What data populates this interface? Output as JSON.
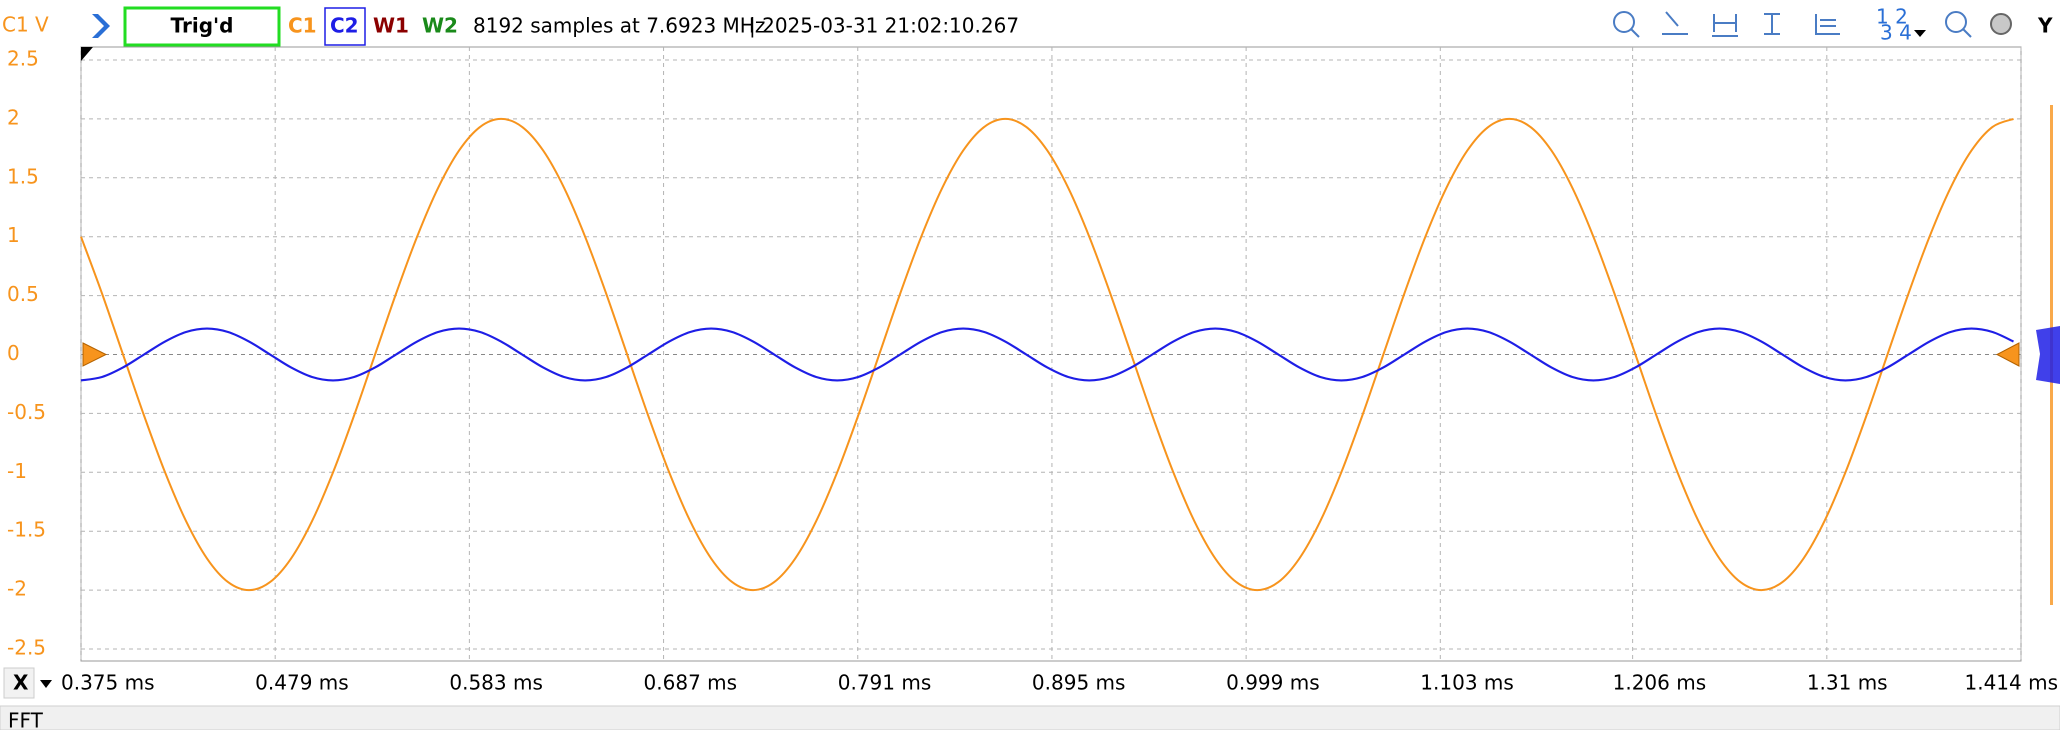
{
  "toolbar": {
    "trigger_status": "Trig'd",
    "channels": [
      "W1",
      "W2"
    ],
    "acquisition": "8192 samples at 7.6923 MHz",
    "timestamp": "| 2025-03-31 21:02:10.267",
    "icon_digits": [
      "1 2",
      "3 4"
    ],
    "y_button": "Y"
  },
  "chart_data": {
    "type": "line",
    "y_label": "C1 V",
    "x": [
      0.375,
      0.38625,
      0.3975,
      0.40875,
      0.42,
      0.43125,
      0.4425,
      0.45375,
      0.465,
      0.47625,
      0.4875,
      0.49875,
      0.51,
      0.52125,
      0.5325,
      0.54375,
      0.555,
      0.56625,
      0.5775,
      0.58875,
      0.6,
      0.61125,
      0.6225,
      0.63375,
      0.645,
      0.65625,
      0.6675,
      0.67875,
      0.69,
      0.70125,
      0.7125,
      0.72375,
      0.735,
      0.74625,
      0.7575,
      0.76875,
      0.78,
      0.79125,
      0.8025,
      0.81375,
      0.825,
      0.83625,
      0.8475,
      0.85875,
      0.87,
      0.88125,
      0.8925,
      0.90375,
      0.915,
      0.92625,
      0.9375,
      0.94875,
      0.96,
      0.97125,
      0.9825,
      0.99375,
      1.005,
      1.01625,
      1.0275,
      1.03875,
      1.05,
      1.06125,
      1.0725,
      1.08375,
      1.095,
      1.10625,
      1.1175,
      1.12875,
      1.14,
      1.15125,
      1.1625,
      1.17375,
      1.185,
      1.19625,
      1.2075,
      1.21875,
      1.23,
      1.24125,
      1.2525,
      1.26375,
      1.275,
      1.28625,
      1.2975,
      1.30875,
      1.32,
      1.33125,
      1.3425,
      1.35375,
      1.365,
      1.37625,
      1.3875,
      1.39875,
      1.41
    ],
    "series": [
      {
        "name": "C1",
        "color": "#f7941d",
        "values": [
          1,
          0.518,
          0,
          -0.518,
          -1,
          -1.414,
          -1.732,
          -1.932,
          -2,
          -1.932,
          -1.732,
          -1.414,
          -1,
          -0.518,
          0,
          0.518,
          1,
          1.414,
          1.732,
          1.932,
          2,
          1.932,
          1.732,
          1.414,
          1,
          0.518,
          0,
          -0.518,
          -1,
          -1.414,
          -1.732,
          -1.932,
          -2,
          -1.932,
          -1.732,
          -1.414,
          -1,
          -0.518,
          0,
          0.518,
          1,
          1.414,
          1.732,
          1.932,
          2,
          1.932,
          1.732,
          1.414,
          1,
          0.518,
          0,
          -0.518,
          -1,
          -1.414,
          -1.732,
          -1.932,
          -2,
          -1.932,
          -1.732,
          -1.414,
          -1,
          -0.518,
          0,
          0.518,
          1,
          1.414,
          1.732,
          1.932,
          2,
          1.932,
          1.732,
          1.414,
          1,
          0.518,
          0,
          -0.518,
          -1,
          -1.414,
          -1.732,
          -1.932,
          -2,
          -1.932,
          -1.732,
          -1.414,
          -1,
          -0.518,
          0,
          0.518,
          1,
          1.414,
          1.732,
          1.932,
          2
        ]
      },
      {
        "name": "C2",
        "color": "#1e1ee6",
        "values": [
          -0.22,
          -0.191,
          -0.11,
          0,
          0.11,
          0.191,
          0.22,
          0.191,
          0.11,
          0,
          -0.11,
          -0.191,
          -0.22,
          -0.191,
          -0.11,
          0,
          0.11,
          0.191,
          0.22,
          0.191,
          0.11,
          0,
          -0.11,
          -0.191,
          -0.22,
          -0.191,
          -0.11,
          0,
          0.11,
          0.191,
          0.22,
          0.191,
          0.11,
          0,
          -0.11,
          -0.191,
          -0.22,
          -0.191,
          -0.11,
          0,
          0.11,
          0.191,
          0.22,
          0.191,
          0.11,
          0,
          -0.11,
          -0.191,
          -0.22,
          -0.191,
          -0.11,
          0,
          0.11,
          0.191,
          0.22,
          0.191,
          0.11,
          0,
          -0.11,
          -0.191,
          -0.22,
          -0.191,
          -0.11,
          0,
          0.11,
          0.191,
          0.22,
          0.191,
          0.11,
          0,
          -0.11,
          -0.191,
          -0.22,
          -0.191,
          -0.11,
          0,
          0.11,
          0.191,
          0.22,
          0.191,
          0.11,
          0,
          -0.11,
          -0.191,
          -0.22,
          -0.191,
          -0.11,
          0,
          0.11,
          0.191,
          0.22,
          0.191,
          0.11
        ]
      }
    ],
    "xlim": [
      0.375,
      1.414
    ],
    "xticks": [
      {
        "value": 0.375,
        "label": "0.375 ms"
      },
      {
        "value": 0.479,
        "label": "0.479 ms"
      },
      {
        "value": 0.583,
        "label": "0.583 ms"
      },
      {
        "value": 0.687,
        "label": "0.687 ms"
      },
      {
        "value": 0.791,
        "label": "0.791 ms"
      },
      {
        "value": 0.895,
        "label": "0.895 ms"
      },
      {
        "value": 0.999,
        "label": "0.999 ms"
      },
      {
        "value": 1.103,
        "label": "1.103 ms"
      },
      {
        "value": 1.206,
        "label": "1.206 ms"
      },
      {
        "value": 1.31,
        "label": "1.31 ms"
      },
      {
        "value": 1.414,
        "label": "1.414 ms"
      }
    ],
    "ylim": [
      -2.5,
      2.5
    ],
    "yticks": [
      2.5,
      2,
      1.5,
      1,
      0.5,
      0,
      -0.5,
      -1,
      -1.5,
      -2,
      -2.5
    ],
    "grid": true
  },
  "bottom_bar": {
    "x_button": "X",
    "panel": "FFT"
  }
}
